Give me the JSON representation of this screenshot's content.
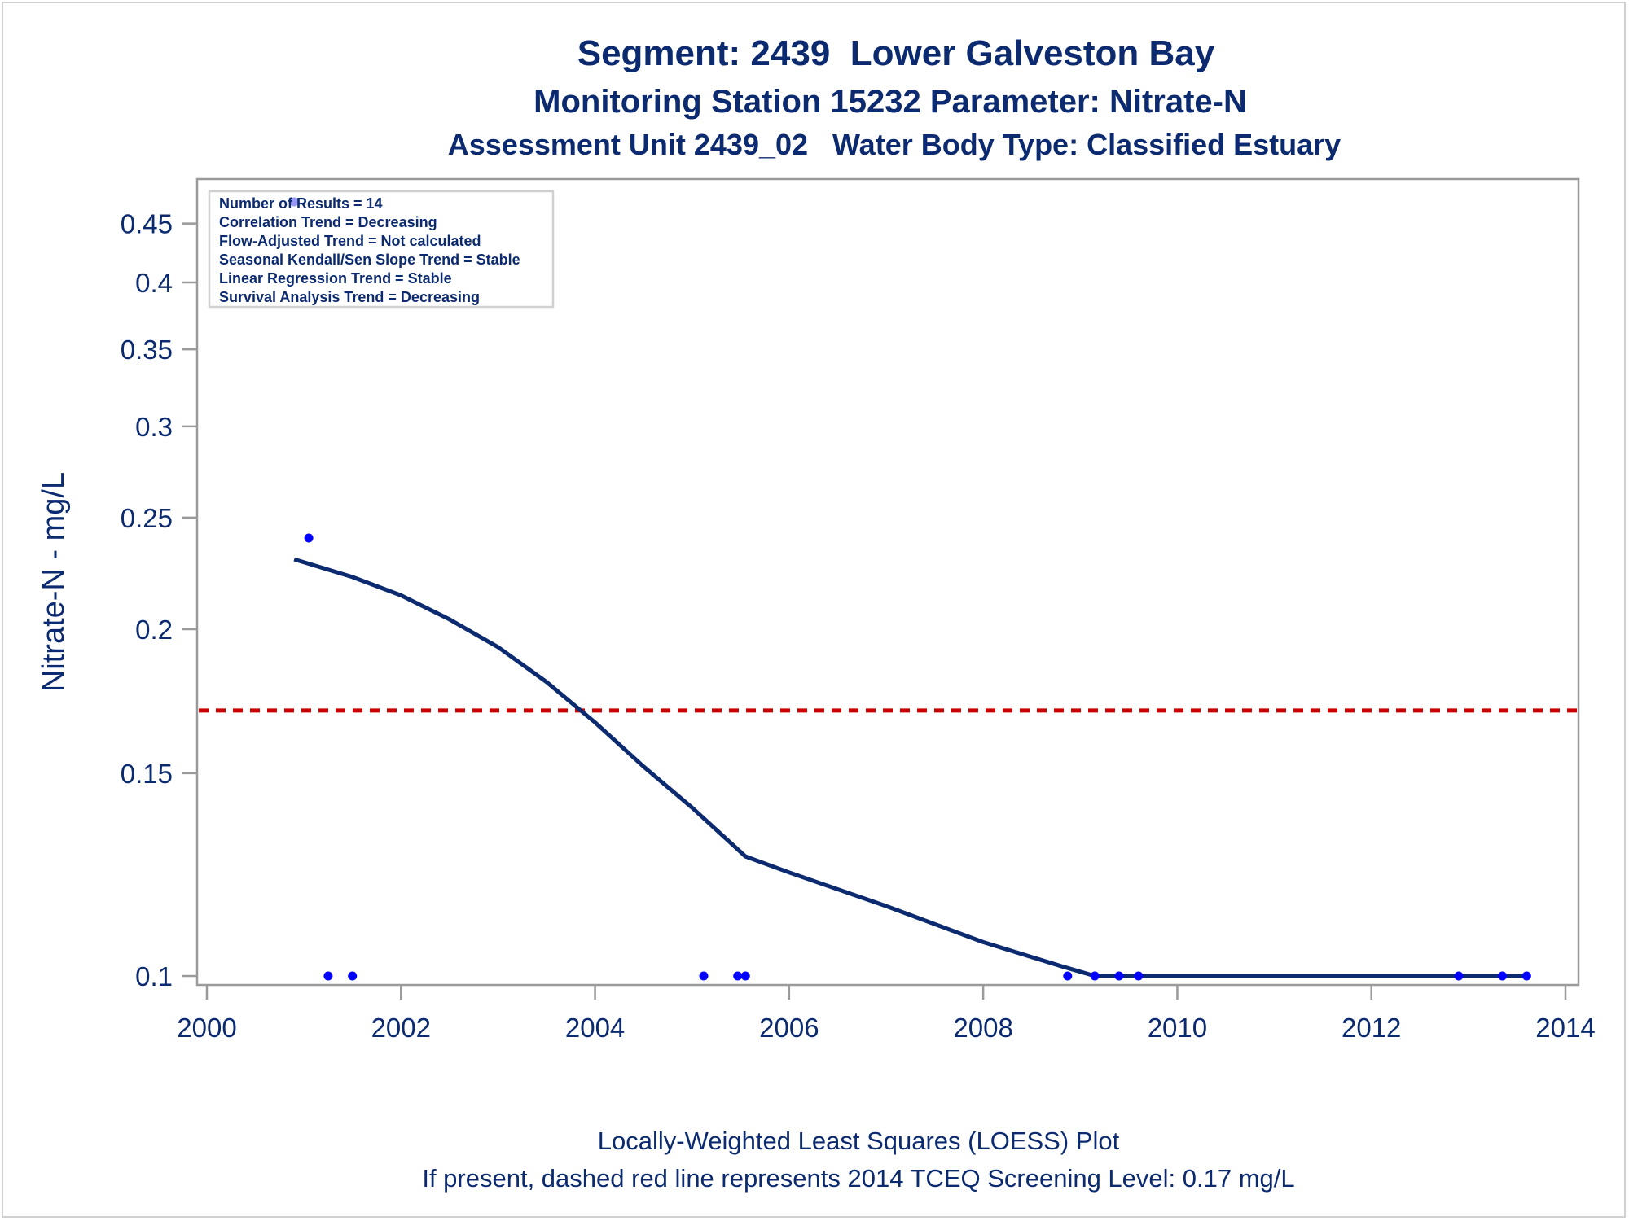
{
  "chart_data": {
    "type": "scatter",
    "title": "Segment: 2439  Lower Galveston Bay",
    "subtitle": "Monitoring Station 15232 Parameter: Nitrate-N",
    "subtitle2": "Assessment Unit 2439_02   Water Body Type: Classified Estuary",
    "xlabel": "",
    "ylabel": "Nitrate-N - mg/L",
    "xlim": [
      2000,
      2014
    ],
    "ylim": [
      0.1,
      0.48
    ],
    "y_scale": "log",
    "x_ticks": [
      "2000",
      "2002",
      "2004",
      "2006",
      "2008",
      "2010",
      "2012",
      "2014"
    ],
    "y_ticks": [
      "0.1",
      "0.15",
      "0.2",
      "0.25",
      "0.3",
      "0.35",
      "0.4",
      "0.45"
    ],
    "points": [
      {
        "x": 2000.9,
        "y": 0.47
      },
      {
        "x": 2001.05,
        "y": 0.24
      },
      {
        "x": 2001.25,
        "y": 0.1
      },
      {
        "x": 2001.5,
        "y": 0.1
      },
      {
        "x": 2005.12,
        "y": 0.1
      },
      {
        "x": 2005.47,
        "y": 0.1
      },
      {
        "x": 2005.55,
        "y": 0.1
      },
      {
        "x": 2008.87,
        "y": 0.1
      },
      {
        "x": 2009.15,
        "y": 0.1
      },
      {
        "x": 2009.4,
        "y": 0.1
      },
      {
        "x": 2009.6,
        "y": 0.1
      },
      {
        "x": 2012.9,
        "y": 0.1
      },
      {
        "x": 2013.35,
        "y": 0.1
      },
      {
        "x": 2013.6,
        "y": 0.1
      }
    ],
    "loess": [
      {
        "x": 2000.9,
        "y": 0.23
      },
      {
        "x": 2001.5,
        "y": 0.222
      },
      {
        "x": 2002.0,
        "y": 0.214
      },
      {
        "x": 2002.5,
        "y": 0.204
      },
      {
        "x": 2003.0,
        "y": 0.193
      },
      {
        "x": 2003.5,
        "y": 0.18
      },
      {
        "x": 2004.0,
        "y": 0.166
      },
      {
        "x": 2004.5,
        "y": 0.152
      },
      {
        "x": 2005.0,
        "y": 0.14
      },
      {
        "x": 2005.55,
        "y": 0.127
      },
      {
        "x": 2006.0,
        "y": 0.123
      },
      {
        "x": 2007.0,
        "y": 0.115
      },
      {
        "x": 2008.0,
        "y": 0.107
      },
      {
        "x": 2008.8,
        "y": 0.102
      },
      {
        "x": 2009.15,
        "y": 0.1
      },
      {
        "x": 2013.6,
        "y": 0.1
      }
    ],
    "screening_level": 0.17,
    "stats": [
      "Number of Results = 14",
      "Correlation Trend = Decreasing",
      "Flow-Adjusted Trend = Not calculated",
      "Seasonal Kendall/Sen Slope Trend = Stable",
      "Linear Regression Trend = Stable",
      "Survival Analysis Trend = Decreasing"
    ],
    "footnote1": "Locally-Weighted Least Squares (LOESS) Plot",
    "footnote2": "If present, dashed red line represents 2014 TCEQ Screening Level: 0.17 mg/L",
    "colors": {
      "text": "#0b2a6f",
      "points": "#0000ff",
      "loess": "#0b2a6f",
      "screening": "#cc0000",
      "axis": "#9a9a9a"
    }
  }
}
